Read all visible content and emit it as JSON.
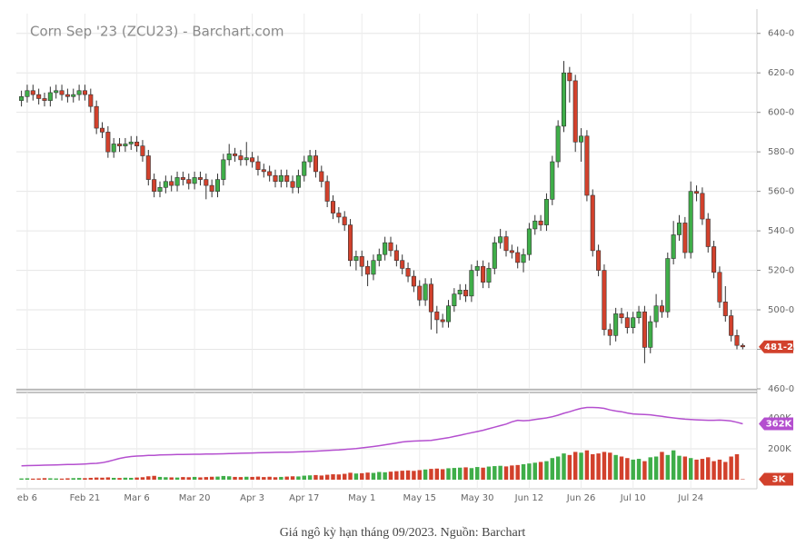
{
  "chart_data": {
    "type": "candlestick",
    "title": "Corn Sep '23 (ZCU23) - Barchart.com",
    "categories": [
      null,
      "eb 6",
      null,
      null,
      null,
      null,
      null,
      null,
      null,
      null,
      null,
      "Feb 21",
      null,
      null,
      null,
      null,
      null,
      null,
      null,
      null,
      "Mar 6",
      null,
      null,
      null,
      null,
      null,
      null,
      null,
      null,
      null,
      "Mar 20",
      null,
      null,
      null,
      null,
      null,
      null,
      null,
      null,
      null,
      "Apr 3",
      null,
      null,
      null,
      null,
      null,
      null,
      null,
      null,
      "Apr 17",
      null,
      null,
      null,
      null,
      null,
      null,
      null,
      null,
      null,
      "May 1",
      null,
      null,
      null,
      null,
      null,
      null,
      null,
      null,
      null,
      "May 15",
      null,
      null,
      null,
      null,
      null,
      null,
      null,
      null,
      null,
      "May 30",
      null,
      null,
      null,
      null,
      null,
      null,
      null,
      null,
      "Jun 12",
      null,
      null,
      null,
      null,
      null,
      null,
      null,
      null,
      "Jun 26",
      null,
      null,
      null,
      null,
      null,
      null,
      null,
      null,
      "Jul 10",
      null,
      null,
      null,
      null,
      null,
      null,
      null,
      null,
      null,
      "Jul 24",
      null,
      null,
      null,
      null,
      null,
      null,
      null,
      null,
      null
    ],
    "open": [
      606,
      608,
      611,
      609,
      607,
      606,
      610,
      611,
      609,
      608,
      609,
      611,
      609,
      603,
      592,
      590,
      580,
      584,
      583,
      584,
      585,
      583,
      578,
      566,
      560,
      562,
      565,
      563,
      567,
      566,
      564,
      567,
      566,
      563,
      560,
      566,
      576,
      579,
      578,
      576,
      577,
      575,
      571,
      570,
      568,
      565,
      568,
      565,
      562,
      568,
      575,
      578,
      570,
      565,
      555,
      549,
      547,
      543,
      525,
      527,
      522,
      518,
      525,
      528,
      534,
      530,
      525,
      521,
      517,
      512,
      505,
      513,
      499,
      495,
      494,
      502,
      508,
      510,
      507,
      520,
      522,
      514,
      521,
      534,
      537,
      530,
      529,
      524,
      528,
      541,
      545,
      543,
      556,
      575,
      593,
      620,
      616,
      585,
      588,
      558,
      530,
      520,
      490,
      487,
      498,
      496,
      491,
      496,
      499,
      481,
      494,
      502,
      499,
      526,
      538,
      544,
      529,
      560,
      559,
      546,
      532,
      519,
      504,
      497,
      487,
      482
    ],
    "high": [
      611,
      614,
      614,
      612,
      610,
      613,
      614,
      614,
      612,
      612,
      614,
      614,
      612,
      606,
      595,
      593,
      587,
      587,
      587,
      588,
      588,
      586,
      581,
      569,
      565,
      568,
      568,
      570,
      570,
      569,
      570,
      570,
      569,
      566,
      569,
      579,
      584,
      582,
      581,
      585,
      580,
      578,
      574,
      573,
      571,
      571,
      571,
      568,
      571,
      578,
      581,
      581,
      573,
      568,
      558,
      552,
      550,
      546,
      530,
      530,
      525,
      528,
      531,
      537,
      537,
      533,
      528,
      524,
      520,
      515,
      516,
      516,
      502,
      498,
      505,
      511,
      513,
      513,
      523,
      525,
      525,
      524,
      537,
      541,
      540,
      533,
      532,
      531,
      544,
      548,
      548,
      559,
      578,
      596,
      626,
      623,
      619,
      592,
      591,
      561,
      533,
      523,
      493,
      501,
      501,
      499,
      499,
      502,
      502,
      497,
      508,
      505,
      529,
      545,
      548,
      547,
      565,
      563,
      562,
      549,
      535,
      522,
      512,
      500,
      490,
      483
    ],
    "low": [
      603,
      605,
      606,
      604,
      603,
      603,
      607,
      606,
      605,
      605,
      606,
      606,
      600,
      589,
      587,
      577,
      577,
      580,
      580,
      581,
      580,
      575,
      563,
      557,
      557,
      559,
      560,
      560,
      563,
      561,
      561,
      563,
      556,
      557,
      557,
      563,
      573,
      575,
      573,
      573,
      572,
      568,
      567,
      565,
      562,
      562,
      562,
      559,
      559,
      565,
      572,
      567,
      562,
      552,
      546,
      544,
      540,
      522,
      520,
      517,
      512,
      515,
      522,
      525,
      527,
      522,
      518,
      514,
      509,
      502,
      502,
      490,
      488,
      491,
      491,
      499,
      505,
      504,
      504,
      517,
      511,
      511,
      518,
      531,
      527,
      526,
      521,
      519,
      525,
      538,
      540,
      540,
      553,
      572,
      590,
      605,
      580,
      575,
      555,
      527,
      517,
      487,
      482,
      484,
      493,
      488,
      488,
      493,
      473,
      478,
      491,
      496,
      496,
      523,
      535,
      526,
      526,
      555,
      543,
      529,
      516,
      501,
      494,
      484,
      480,
      480
    ],
    "close": [
      608,
      611,
      609,
      607,
      606,
      610,
      611,
      609,
      608,
      609,
      611,
      609,
      603,
      592,
      590,
      580,
      584,
      583,
      584,
      585,
      583,
      578,
      566,
      560,
      562,
      565,
      563,
      567,
      566,
      564,
      567,
      566,
      563,
      560,
      566,
      576,
      579,
      578,
      576,
      577,
      575,
      571,
      570,
      568,
      565,
      568,
      565,
      562,
      568,
      575,
      578,
      570,
      565,
      555,
      549,
      547,
      543,
      525,
      527,
      522,
      518,
      525,
      528,
      534,
      530,
      525,
      521,
      517,
      512,
      505,
      513,
      499,
      495,
      494,
      502,
      508,
      510,
      507,
      520,
      522,
      514,
      521,
      534,
      537,
      530,
      529,
      524,
      528,
      541,
      545,
      543,
      556,
      575,
      593,
      620,
      616,
      585,
      588,
      558,
      530,
      520,
      490,
      487,
      498,
      496,
      491,
      496,
      499,
      481,
      494,
      502,
      499,
      526,
      538,
      544,
      529,
      560,
      559,
      546,
      532,
      519,
      504,
      497,
      487,
      482,
      481.25
    ],
    "up_color": "#3fae49",
    "down_color": "#d2412c",
    "ylim": [
      460,
      650
    ],
    "yticks": [
      {
        "value": 460,
        "label": "460-0"
      },
      {
        "value": 480,
        "label": "480-0"
      },
      {
        "value": 500,
        "label": "500-0"
      },
      {
        "value": 520,
        "label": "520-0"
      },
      {
        "value": 540,
        "label": "540-0"
      },
      {
        "value": 560,
        "label": "560-0"
      },
      {
        "value": 580,
        "label": "580-0"
      },
      {
        "value": 600,
        "label": "600-0"
      },
      {
        "value": 620,
        "label": "620-0"
      },
      {
        "value": 640,
        "label": "640-0"
      }
    ],
    "last_price": {
      "value": 481.25,
      "label": "481-2"
    },
    "grid": true,
    "volume": {
      "values": [
        8000,
        9000,
        7000,
        8000,
        10000,
        9000,
        8000,
        7000,
        9000,
        10000,
        11000,
        10000,
        12000,
        14000,
        13000,
        15000,
        12000,
        11000,
        13000,
        12000,
        14000,
        16000,
        22000,
        25000,
        18000,
        16000,
        15000,
        14000,
        17000,
        16000,
        18000,
        15000,
        17000,
        19000,
        20000,
        24000,
        22000,
        18000,
        17000,
        19000,
        18000,
        20000,
        17000,
        19000,
        16000,
        18000,
        20000,
        22000,
        21000,
        26000,
        28000,
        30000,
        27000,
        32000,
        35000,
        34000,
        38000,
        45000,
        40000,
        42000,
        46000,
        44000,
        50000,
        48000,
        52000,
        55000,
        58000,
        60000,
        57000,
        62000,
        66000,
        70000,
        72000,
        68000,
        74000,
        76000,
        78000,
        80000,
        75000,
        82000,
        78000,
        85000,
        88000,
        90000,
        86000,
        92000,
        95000,
        100000,
        105000,
        110000,
        115000,
        120000,
        140000,
        150000,
        170000,
        160000,
        180000,
        175000,
        190000,
        165000,
        170000,
        180000,
        175000,
        160000,
        150000,
        140000,
        130000,
        135000,
        120000,
        145000,
        150000,
        180000,
        160000,
        190000,
        155000,
        150000,
        140000,
        130000,
        135000,
        145000,
        120000,
        130000,
        115000,
        150000,
        165000,
        3000
      ],
      "last": {
        "value": 3000,
        "label": "3K"
      }
    },
    "open_interest": {
      "color": "#b44fcf",
      "values": [
        90000,
        91000,
        92000,
        93000,
        94000,
        95000,
        96000,
        97000,
        98000,
        99000,
        100000,
        102000,
        104000,
        106000,
        110000,
        118000,
        128000,
        138000,
        145000,
        150000,
        153000,
        155000,
        157000,
        158000,
        160000,
        161000,
        162000,
        163000,
        163000,
        164000,
        165000,
        165000,
        166000,
        166000,
        167000,
        168000,
        169000,
        170000,
        171000,
        172000,
        173000,
        174000,
        175000,
        176000,
        177000,
        178000,
        178000,
        179000,
        180000,
        182000,
        183000,
        185000,
        187000,
        189000,
        191000,
        193000,
        196000,
        199000,
        202000,
        206000,
        210000,
        215000,
        220000,
        226000,
        232000,
        238000,
        244000,
        248000,
        250000,
        252000,
        253000,
        255000,
        260000,
        266000,
        272000,
        280000,
        288000,
        296000,
        304000,
        312000,
        320000,
        330000,
        340000,
        350000,
        360000,
        375000,
        385000,
        382000,
        384000,
        390000,
        395000,
        400000,
        408000,
        418000,
        430000,
        440000,
        452000,
        462000,
        468000,
        468000,
        466000,
        462000,
        452000,
        445000,
        440000,
        432000,
        426000,
        424000,
        422000,
        420000,
        415000,
        410000,
        405000,
        400000,
        396000,
        392000,
        390000,
        388000,
        386000,
        385000,
        385000,
        386000,
        384000,
        380000,
        372000,
        362000
      ],
      "last": {
        "value": 362000,
        "label": "362K"
      }
    },
    "y2lim": [
      0,
      565000
    ],
    "y2ticks": [
      {
        "value": 200000,
        "label": "200K"
      },
      {
        "value": 400000,
        "label": "400K"
      }
    ]
  },
  "caption": "Giá ngô kỳ hạn tháng 09/2023. Nguồn: Barchart"
}
